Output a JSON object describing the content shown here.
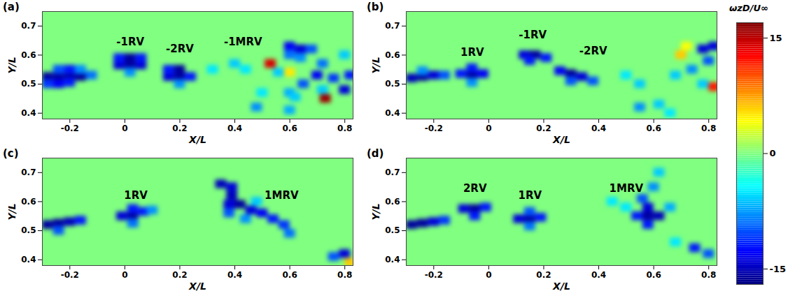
{
  "chart_data": {
    "type": "heatmap",
    "x_label": "X/L",
    "y_label": "Y/L",
    "xlim": [
      -0.3,
      0.83
    ],
    "ylim": [
      0.38,
      0.75
    ],
    "xticks": [
      -0.2,
      0,
      0.2,
      0.4,
      0.6,
      0.8
    ],
    "yticks": [
      0.4,
      0.5,
      0.6,
      0.7
    ],
    "cell_width": 0.04,
    "cell_height": 0.03,
    "background_value": 0,
    "colorbar": {
      "label": "ωzD/U∞",
      "range": [
        -17,
        17
      ],
      "ticks": [
        -15,
        0,
        15
      ]
    },
    "panels": [
      {
        "title": "(a)",
        "annotations": [
          {
            "text": "-1RV",
            "x": 0.02,
            "y": 0.645
          },
          {
            "text": "-2RV",
            "x": 0.2,
            "y": 0.62
          },
          {
            "text": "-1MRV",
            "x": 0.43,
            "y": 0.645
          }
        ],
        "cells": [
          [
            -0.28,
            0.525,
            -16
          ],
          [
            -0.24,
            0.525,
            -16
          ],
          [
            -0.2,
            0.525,
            -16
          ],
          [
            -0.16,
            0.525,
            -16
          ],
          [
            -0.12,
            0.53,
            -9
          ],
          [
            -0.28,
            0.5,
            -11
          ],
          [
            -0.24,
            0.5,
            -13
          ],
          [
            -0.2,
            0.505,
            -12
          ],
          [
            -0.24,
            0.55,
            -10
          ],
          [
            -0.2,
            0.55,
            -12
          ],
          [
            -0.16,
            0.55,
            -8
          ],
          [
            -0.02,
            0.565,
            -14
          ],
          [
            0.02,
            0.565,
            -16
          ],
          [
            0.06,
            0.565,
            -14
          ],
          [
            -0.02,
            0.59,
            -12
          ],
          [
            0.02,
            0.59,
            -16
          ],
          [
            0.06,
            0.59,
            -12
          ],
          [
            0.02,
            0.54,
            -8
          ],
          [
            0.16,
            0.525,
            -14
          ],
          [
            0.2,
            0.525,
            -16
          ],
          [
            0.24,
            0.525,
            -12
          ],
          [
            0.16,
            0.55,
            -12
          ],
          [
            0.2,
            0.55,
            -16
          ],
          [
            0.2,
            0.5,
            -8
          ],
          [
            0.32,
            0.55,
            -5
          ],
          [
            0.4,
            0.57,
            -6
          ],
          [
            0.44,
            0.55,
            -5
          ],
          [
            0.6,
            0.63,
            -13
          ],
          [
            0.64,
            0.62,
            -14
          ],
          [
            0.6,
            0.6,
            -9
          ],
          [
            0.68,
            0.62,
            -10
          ],
          [
            0.64,
            0.59,
            -8
          ],
          [
            0.53,
            0.57,
            14
          ],
          [
            0.56,
            0.54,
            -6
          ],
          [
            0.6,
            0.54,
            5
          ],
          [
            0.65,
            0.5,
            -10
          ],
          [
            0.7,
            0.53,
            -13
          ],
          [
            0.72,
            0.57,
            -9
          ],
          [
            0.76,
            0.52,
            -11
          ],
          [
            0.8,
            0.48,
            -14
          ],
          [
            0.82,
            0.53,
            -12
          ],
          [
            0.73,
            0.45,
            16
          ],
          [
            0.72,
            0.48,
            -6
          ],
          [
            0.8,
            0.6,
            -6
          ],
          [
            0.6,
            0.47,
            -7
          ],
          [
            0.5,
            0.47,
            -5
          ],
          [
            0.48,
            0.42,
            -8
          ],
          [
            0.6,
            0.41,
            -7
          ],
          [
            0.62,
            0.455,
            -6
          ]
        ]
      },
      {
        "title": "(b)",
        "annotations": [
          {
            "text": "1RV",
            "x": -0.06,
            "y": 0.61
          },
          {
            "text": "-1RV",
            "x": 0.16,
            "y": 0.67
          },
          {
            "text": "-2RV",
            "x": 0.38,
            "y": 0.615
          }
        ],
        "cells": [
          [
            -0.28,
            0.52,
            -15
          ],
          [
            -0.24,
            0.525,
            -16
          ],
          [
            -0.2,
            0.53,
            -14
          ],
          [
            -0.16,
            0.53,
            -10
          ],
          [
            -0.24,
            0.545,
            -8
          ],
          [
            -0.1,
            0.535,
            -12
          ],
          [
            -0.06,
            0.53,
            -16
          ],
          [
            -0.02,
            0.535,
            -13
          ],
          [
            -0.06,
            0.555,
            -12
          ],
          [
            -0.06,
            0.505,
            -8
          ],
          [
            0.13,
            0.6,
            -14
          ],
          [
            0.17,
            0.6,
            -16
          ],
          [
            0.21,
            0.59,
            -12
          ],
          [
            0.15,
            0.58,
            -12
          ],
          [
            0.26,
            0.545,
            -13
          ],
          [
            0.3,
            0.535,
            -16
          ],
          [
            0.34,
            0.525,
            -14
          ],
          [
            0.38,
            0.51,
            -10
          ],
          [
            0.3,
            0.51,
            -10
          ],
          [
            0.5,
            0.53,
            -5
          ],
          [
            0.55,
            0.5,
            -6
          ],
          [
            0.78,
            0.62,
            -14
          ],
          [
            0.82,
            0.63,
            -14
          ],
          [
            0.8,
            0.58,
            -10
          ],
          [
            0.74,
            0.55,
            -8
          ],
          [
            0.68,
            0.53,
            -6
          ],
          [
            0.82,
            0.49,
            12
          ],
          [
            0.78,
            0.5,
            -6
          ],
          [
            0.7,
            0.6,
            6
          ],
          [
            0.72,
            0.63,
            4
          ],
          [
            0.55,
            0.42,
            -8
          ],
          [
            0.62,
            0.43,
            -6
          ],
          [
            0.66,
            0.4,
            -5
          ]
        ]
      },
      {
        "title": "(c)",
        "annotations": [
          {
            "text": "1RV",
            "x": 0.04,
            "y": 0.62
          },
          {
            "text": "1MRV",
            "x": 0.57,
            "y": 0.62
          }
        ],
        "cells": [
          [
            -0.28,
            0.52,
            -16
          ],
          [
            -0.24,
            0.525,
            -16
          ],
          [
            -0.2,
            0.53,
            -15
          ],
          [
            -0.16,
            0.535,
            -12
          ],
          [
            -0.24,
            0.5,
            -10
          ],
          [
            -0.01,
            0.55,
            -14
          ],
          [
            0.03,
            0.55,
            -16
          ],
          [
            0.03,
            0.575,
            -12
          ],
          [
            0.07,
            0.565,
            -12
          ],
          [
            0.1,
            0.57,
            -8
          ],
          [
            0.03,
            0.525,
            -9
          ],
          [
            0.35,
            0.66,
            -15
          ],
          [
            0.39,
            0.65,
            -14
          ],
          [
            0.39,
            0.62,
            -15
          ],
          [
            0.38,
            0.59,
            -14
          ],
          [
            0.42,
            0.59,
            -16
          ],
          [
            0.38,
            0.56,
            -10
          ],
          [
            0.46,
            0.57,
            -14
          ],
          [
            0.5,
            0.56,
            -13
          ],
          [
            0.54,
            0.54,
            -12
          ],
          [
            0.58,
            0.52,
            -11
          ],
          [
            0.6,
            0.49,
            -9
          ],
          [
            0.44,
            0.54,
            -8
          ],
          [
            0.48,
            0.6,
            -6
          ],
          [
            0.8,
            0.42,
            -14
          ],
          [
            0.76,
            0.41,
            -10
          ],
          [
            0.82,
            0.39,
            6
          ]
        ]
      },
      {
        "title": "(d)",
        "annotations": [
          {
            "text": "2RV",
            "x": -0.05,
            "y": 0.645
          },
          {
            "text": "1RV",
            "x": 0.15,
            "y": 0.62
          },
          {
            "text": "1MRV",
            "x": 0.5,
            "y": 0.645
          }
        ],
        "cells": [
          [
            -0.28,
            0.52,
            -16
          ],
          [
            -0.24,
            0.525,
            -16
          ],
          [
            -0.2,
            0.53,
            -14
          ],
          [
            -0.16,
            0.535,
            -11
          ],
          [
            -0.09,
            0.575,
            -14
          ],
          [
            -0.05,
            0.575,
            -16
          ],
          [
            -0.01,
            0.58,
            -12
          ],
          [
            -0.05,
            0.55,
            -12
          ],
          [
            0.11,
            0.54,
            -14
          ],
          [
            0.15,
            0.54,
            -16
          ],
          [
            0.19,
            0.545,
            -12
          ],
          [
            0.15,
            0.515,
            -9
          ],
          [
            0.15,
            0.565,
            -10
          ],
          [
            0.54,
            0.55,
            -12
          ],
          [
            0.58,
            0.55,
            -16
          ],
          [
            0.62,
            0.55,
            -15
          ],
          [
            0.58,
            0.52,
            -12
          ],
          [
            0.58,
            0.58,
            -14
          ],
          [
            0.56,
            0.61,
            -10
          ],
          [
            0.6,
            0.65,
            -8
          ],
          [
            0.62,
            0.7,
            -6
          ],
          [
            0.66,
            0.58,
            -7
          ],
          [
            0.5,
            0.58,
            -5
          ],
          [
            0.45,
            0.6,
            -5
          ],
          [
            0.75,
            0.44,
            -12
          ],
          [
            0.8,
            0.42,
            -10
          ],
          [
            0.68,
            0.46,
            -5
          ]
        ]
      }
    ]
  }
}
